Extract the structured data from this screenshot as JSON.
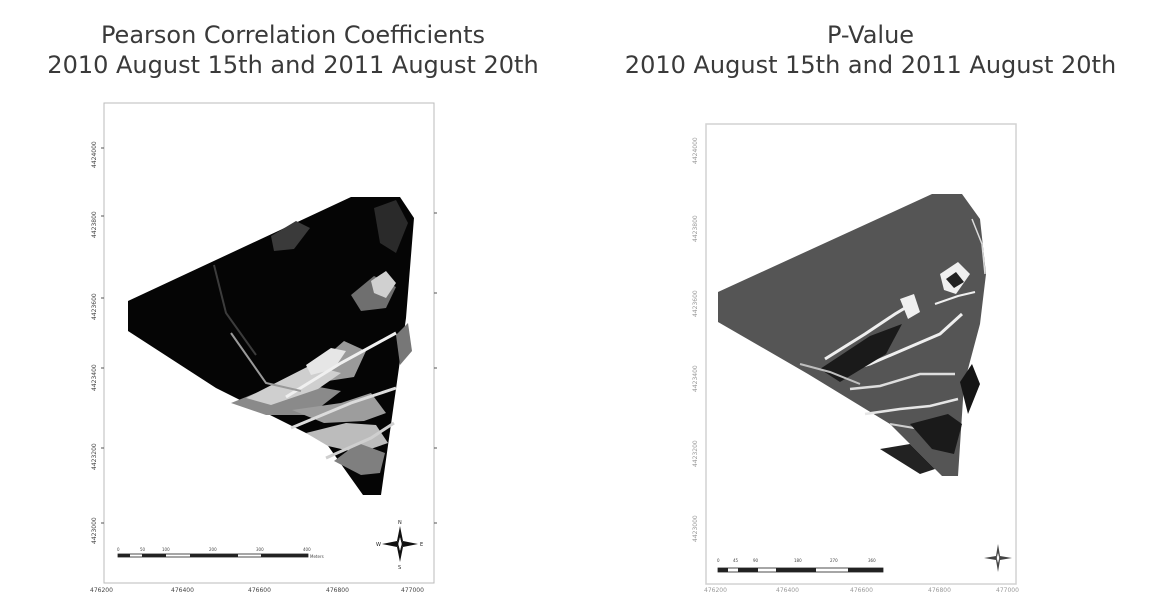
{
  "left_map": {
    "title_line1": "Pearson Correlation Coefficients",
    "title_line2": "2010 August 15th and 2011 August 20th",
    "y_ticks": [
      "4424000",
      "4423800",
      "4423600",
      "4423400",
      "4423200",
      "4423000"
    ],
    "x_ticks": [
      "476200",
      "476400",
      "476600",
      "476800",
      "477000"
    ],
    "scale_labels": [
      "0",
      "50",
      "100",
      "200",
      "300",
      "400",
      "Meters"
    ],
    "compass": {
      "n": "N",
      "s": "S",
      "e": "E",
      "w": "W"
    },
    "colors": {
      "fill": "#050505",
      "strong": "#d9d9d9",
      "mid": "#8a8a8a"
    }
  },
  "right_map": {
    "title_line1": "P-Value",
    "title_line2": "2010 August 15th and 2011 August 20th",
    "y_ticks": [
      "4424000",
      "4423800",
      "4423600",
      "4423400",
      "4423200",
      "4423000"
    ],
    "x_ticks": [
      "476200",
      "476400",
      "476600",
      "476800",
      "477000"
    ],
    "scale_labels": [
      "0",
      "45",
      "90",
      "180",
      "270",
      "360"
    ],
    "colors": {
      "fill": "#555555",
      "highlight": "#ececec",
      "dark": "#111111"
    }
  }
}
